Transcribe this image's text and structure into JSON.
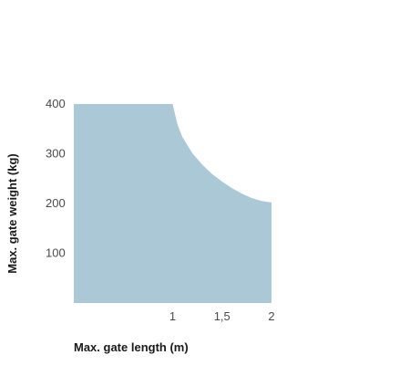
{
  "colors": {
    "area_fill": "#abc8d6",
    "tick_text": "#4a4a4a",
    "axis_title_text": "#1a1a1a",
    "background": "#ffffff"
  },
  "chart_data": {
    "type": "area",
    "title": "",
    "xlabel": "Max. gate length (m)",
    "ylabel": "Max. gate weight (kg)",
    "xlim": [
      0,
      2
    ],
    "ylim": [
      0,
      400
    ],
    "x_ticks": [
      {
        "value": 1,
        "label": "1"
      },
      {
        "value": 1.5,
        "label": "1,5"
      },
      {
        "value": 2,
        "label": "2"
      }
    ],
    "y_ticks": [
      {
        "value": 100,
        "label": "100"
      },
      {
        "value": 200,
        "label": "200"
      },
      {
        "value": 300,
        "label": "300"
      },
      {
        "value": 400,
        "label": "400"
      }
    ],
    "grid": false,
    "legend": "none",
    "series": [
      {
        "x": [
          0,
          1.0,
          1.05,
          1.1,
          1.2,
          1.3,
          1.4,
          1.5,
          1.6,
          1.7,
          1.8,
          1.9,
          2.0
        ],
        "y": [
          400,
          400,
          358,
          333,
          301,
          278,
          259,
          244,
          231,
          220,
          211,
          205,
          202
        ]
      }
    ]
  }
}
